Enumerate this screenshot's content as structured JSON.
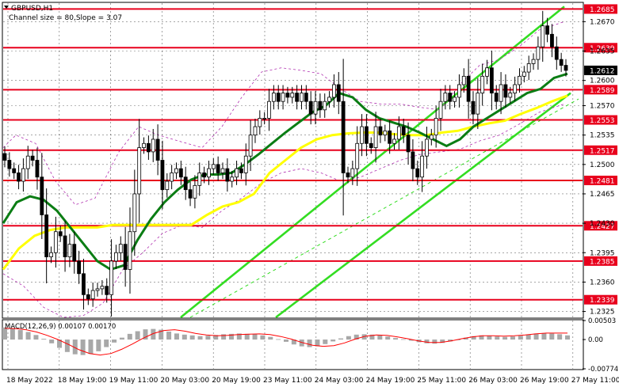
{
  "chart_data": {
    "type": "candlestick",
    "symbol_title": "GBPUSD,H1",
    "channel_label": "Channel size = 80,Slope = 3.07",
    "price_axis": {
      "ylim": [
        1.2318,
        1.2692
      ],
      "ticks": [
        "1.2670",
        "1.2635",
        "1.2600",
        "1.2570",
        "1.2535",
        "1.2500",
        "1.2465",
        "1.2430",
        "1.2395",
        "1.2360",
        "1.2325"
      ]
    },
    "current_price": "1.2612",
    "levels": [
      {
        "value": 1.2685,
        "label": "1.2685"
      },
      {
        "value": 1.2639,
        "label": "1.2639"
      },
      {
        "value": 1.2589,
        "label": "1.2589"
      },
      {
        "value": 1.2553,
        "label": "1.2553"
      },
      {
        "value": 1.2517,
        "label": "1.2517"
      },
      {
        "value": 1.2481,
        "label": "1.2481"
      },
      {
        "value": 1.2427,
        "label": "1.2427"
      },
      {
        "value": 1.2385,
        "label": "1.2385"
      },
      {
        "value": 1.2339,
        "label": "1.2339"
      }
    ],
    "x_labels": [
      "18 May 2022",
      "18 May 19:00",
      "19 May 11:00",
      "20 May 03:00",
      "20 May 19:00",
      "23 May 11:00",
      "24 May 03:00",
      "24 May 19:00",
      "25 May 11:00",
      "26 May 03:00",
      "26 May 19:00",
      "27 May 11:00"
    ],
    "close_path": [
      1.2505,
      1.2495,
      1.249,
      1.248,
      1.2495,
      1.251,
      1.2505,
      1.2485,
      1.244,
      1.239,
      1.2395,
      1.242,
      1.2415,
      1.239,
      1.2405,
      1.2385,
      1.237,
      1.2345,
      1.234,
      1.235,
      1.2352,
      1.2355,
      1.2345,
      1.2385,
      1.2395,
      1.2405,
      1.2375,
      1.242,
      1.2465,
      1.252,
      1.2525,
      1.2515,
      1.253,
      1.2505,
      1.247,
      1.248,
      1.249,
      1.2495,
      1.2485,
      1.247,
      1.246,
      1.2475,
      1.249,
      1.2485,
      1.2495,
      1.25,
      1.249,
      1.2495,
      1.248,
      1.2485,
      1.2495,
      1.249,
      1.251,
      1.2535,
      1.2545,
      1.2555,
      1.2555,
      1.2575,
      1.2585,
      1.2575,
      1.2585,
      1.258,
      1.2585,
      1.2575,
      1.2585,
      1.2575,
      1.256,
      1.2575,
      1.2565,
      1.2575,
      1.258,
      1.2595,
      1.2575,
      1.249,
      1.2485,
      1.2495,
      1.2525,
      1.2545,
      1.2525,
      1.252,
      1.2545,
      1.2535,
      1.254,
      1.2525,
      1.253,
      1.2545,
      1.2535,
      1.2515,
      1.2495,
      1.2485,
      1.251,
      1.253,
      1.2535,
      1.2555,
      1.2575,
      1.2585,
      1.2575,
      1.258,
      1.2595,
      1.2605,
      1.2575,
      1.256,
      1.2585,
      1.2605,
      1.2615,
      1.2585,
      1.2575,
      1.2595,
      1.258,
      1.2585,
      1.2595,
      1.2605,
      1.261,
      1.262,
      1.2625,
      1.264,
      1.2665,
      1.2655,
      1.264,
      1.2625,
      1.2618,
      1.2612
    ],
    "ma_green": [
      1.243,
      1.2455,
      1.2462,
      1.2458,
      1.2445,
      1.2425,
      1.2405,
      1.2385,
      1.2375,
      1.238,
      1.241,
      1.2435,
      1.2455,
      1.247,
      1.2482,
      1.2488,
      1.2488,
      1.249,
      1.25,
      1.2512,
      1.2525,
      1.2538,
      1.255,
      1.2562,
      1.257,
      1.2585,
      1.258,
      1.2565,
      1.2555,
      1.255,
      1.2545,
      1.2538,
      1.253,
      1.2522,
      1.253,
      1.2545,
      1.2555,
      1.2565,
      1.2575,
      1.2585,
      1.259,
      1.2603,
      1.2608
    ],
    "ma_yellow": [
      1.2375,
      1.24,
      1.2415,
      1.2422,
      1.2425,
      1.2425,
      1.2425,
      1.2428,
      1.2428,
      1.2428,
      1.2428,
      1.2428,
      1.2428,
      1.244,
      1.245,
      1.2455,
      1.2465,
      1.249,
      1.2505,
      1.252,
      1.253,
      1.2535,
      1.2537,
      1.2538,
      1.2538,
      1.2536,
      1.2535,
      1.2535,
      1.2538,
      1.254,
      1.2545,
      1.2549,
      1.2552,
      1.256,
      1.2567,
      1.2575,
      1.2582
    ],
    "macd": {
      "label": "MACD(12,26,9) 0.00107 0.00170",
      "ticks": [
        "0.00503",
        "0.00",
        "-0.00774"
      ],
      "ylim": [
        -0.00774,
        0.00503
      ],
      "histogram": [
        0.0032,
        0.0029,
        0.0025,
        0.002,
        0.0012,
        0.0002,
        -0.001,
        -0.0022,
        -0.0033,
        -0.0039,
        -0.0041,
        -0.0038,
        -0.0031,
        -0.002,
        -0.0008,
        0.0005,
        0.0015,
        0.0022,
        0.0027,
        0.0028,
        0.0026,
        0.0021,
        0.0016,
        0.0013,
        0.0011,
        0.0009,
        0.001,
        0.0012,
        0.0014,
        0.0015,
        0.0016,
        0.0015,
        0.0014,
        0.0011,
        0.0007,
        0.0001,
        -0.0006,
        -0.0013,
        -0.0018,
        -0.002,
        -0.0018,
        -0.0012,
        -0.0005,
        0.0003,
        0.0009,
        0.0013,
        0.0014,
        0.0013,
        0.0011,
        0.0008,
        0.0004,
        0.0001,
        -0.0003,
        -0.0007,
        -0.001,
        -0.0011,
        -0.0009,
        -0.0005,
        0.0,
        0.0005,
        0.0009,
        0.0011,
        0.001,
        0.0008,
        0.0007,
        0.0008,
        0.001,
        0.0013,
        0.0016,
        0.0017,
        0.0016,
        0.0014,
        0.0011
      ],
      "signal": [
        0.003,
        0.0029,
        0.0026,
        0.002,
        0.0011,
        0.0,
        -0.0013,
        -0.0027,
        -0.0037,
        -0.0041,
        -0.0037,
        -0.0026,
        -0.0012,
        0.0003,
        0.0016,
        0.0024,
        0.0026,
        0.0022,
        0.0016,
        0.0012,
        0.001,
        0.0011,
        0.0013,
        0.0014,
        0.0015,
        0.0013,
        0.0008,
        0.0001,
        -0.0008,
        -0.0015,
        -0.0018,
        -0.0016,
        -0.0009,
        0.0001,
        0.0009,
        0.0012,
        0.0011,
        0.0007,
        0.0002,
        -0.0004,
        -0.0008,
        -0.0008,
        -0.0004,
        0.0002,
        0.0007,
        0.001,
        0.001,
        0.0009,
        0.001,
        0.0012,
        0.0015,
        0.0017,
        0.0017,
        0.0017
      ]
    },
    "colors": {
      "level": "#e8001c",
      "ma_green": "#0b7d14",
      "ma_yellow": "#ffff00",
      "channel": "#33dd22",
      "envelope": "#b030b0",
      "candle": "#000000",
      "macd_hist": "#a8a8a8",
      "macd_signal": "#ff0000",
      "label_bg": "#e8001c",
      "label_text": "#ffffff",
      "price_label_bg": "#000000"
    }
  }
}
